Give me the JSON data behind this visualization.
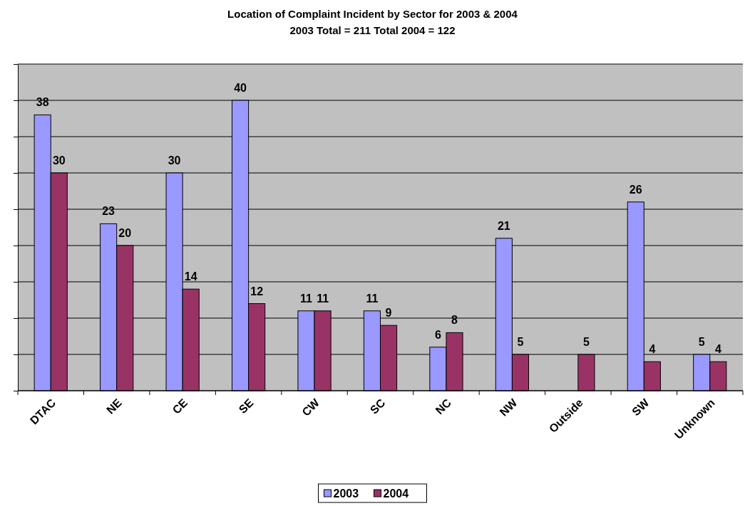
{
  "chart_data": {
    "type": "bar",
    "title": "Location of Complaint Incident by Sector for 2003 & 2004",
    "subtitle": "2003 Total = 211    Total 2004 = 122",
    "categories": [
      "DTAC",
      "NE",
      "CE",
      "SE",
      "CW",
      "SC",
      "NC",
      "NW",
      "Outside",
      "SW",
      "Unknown"
    ],
    "series": [
      {
        "name": "2003",
        "color": "#9999ff",
        "values": [
          38,
          23,
          30,
          40,
          11,
          11,
          6,
          21,
          null,
          26,
          5
        ]
      },
      {
        "name": "2004",
        "color": "#993366",
        "values": [
          30,
          20,
          14,
          12,
          11,
          9,
          8,
          5,
          5,
          4,
          4
        ]
      }
    ],
    "ylim": [
      0,
      45
    ],
    "yticks": [
      {
        "value": 0,
        "label": null
      },
      {
        "value": 5,
        "label": null
      },
      {
        "value": 10,
        "label": null
      },
      {
        "value": 15,
        "label": null
      },
      {
        "value": 20,
        "label": null
      },
      {
        "value": 25,
        "label": null
      },
      {
        "value": 30,
        "label": null
      },
      {
        "value": 35,
        "label": null
      },
      {
        "value": 40,
        "label": null
      },
      {
        "value": 45,
        "label": null
      }
    ],
    "tick_labels": "x",
    "grid": "y",
    "data_labels": true,
    "legend": "bottom"
  }
}
